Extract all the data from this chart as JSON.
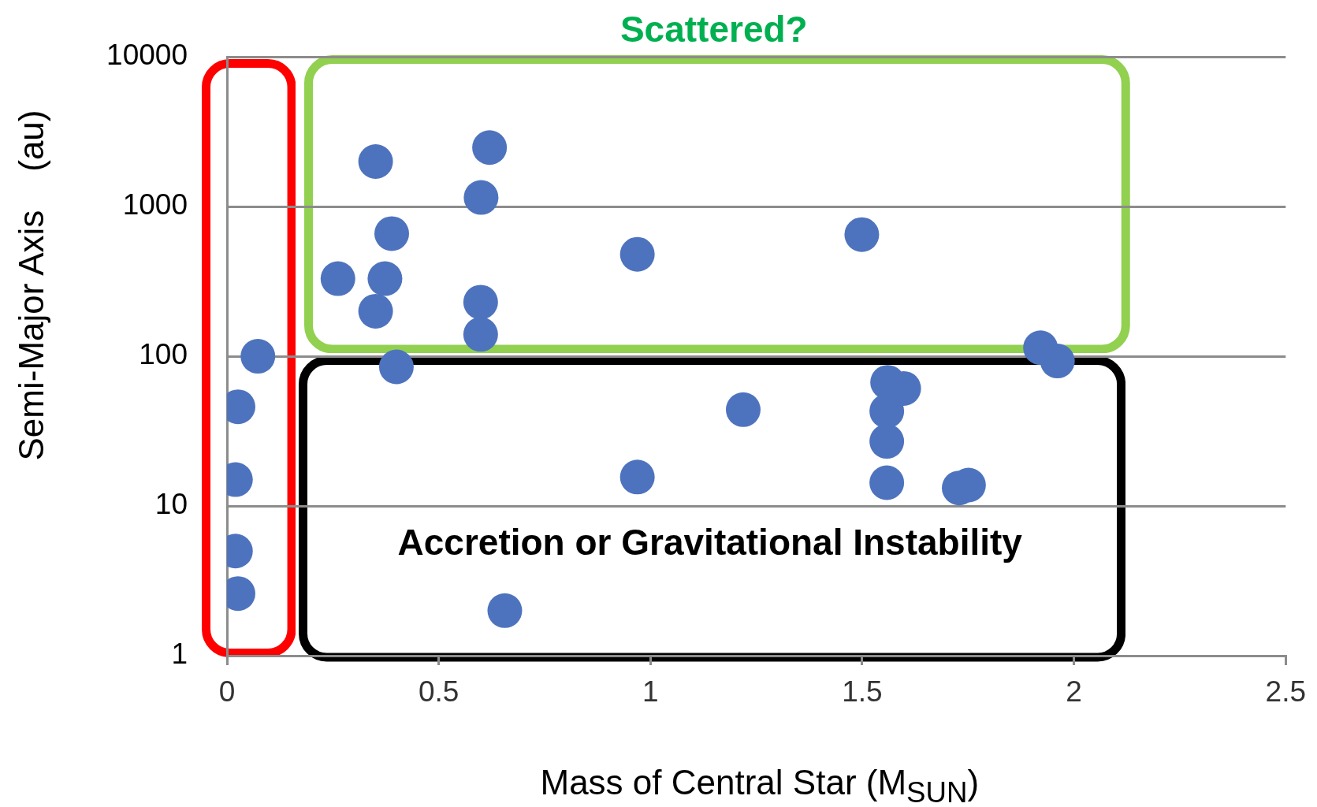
{
  "chart_data": {
    "type": "scatter",
    "xlabel": "Mass of  Central Star (M$_{SUN}$)",
    "ylabel": "Semi-Major Axis    (au)",
    "annotations": [
      "Scattered?",
      "Accretion or Gravitational Instability"
    ],
    "log": "y",
    "grid": "y",
    "legend": false,
    "marker": "circle",
    "xlim": [
      0,
      2.5
    ],
    "xticks": [
      0,
      0.5,
      1,
      1.5,
      2,
      2.5
    ],
    "ylim": [
      1,
      10000
    ],
    "yticks": [
      1,
      10,
      100,
      1000,
      10000
    ],
    "series": [
      {
        "color": "#4e73be",
        "x": [
          0.073,
          0.026,
          0.02,
          0.02,
          0.026,
          0.351,
          0.62,
          0.6,
          0.389,
          0.262,
          0.373,
          0.351,
          0.599,
          0.599,
          0.4,
          0.969,
          1.499,
          1.921,
          1.961,
          1.219,
          0.969,
          0.656,
          1.56,
          1.598,
          1.558,
          1.558,
          1.558,
          1.729,
          1.751
        ],
        "values": [
          100,
          46,
          15,
          5,
          2.6,
          2000,
          2480,
          1150,
          660,
          330,
          330,
          200,
          230,
          140,
          85,
          480,
          650,
          114,
          93,
          44,
          15.6,
          2,
          67,
          61,
          43,
          27,
          14.3,
          13.2,
          13.8
        ]
      }
    ]
  }
}
